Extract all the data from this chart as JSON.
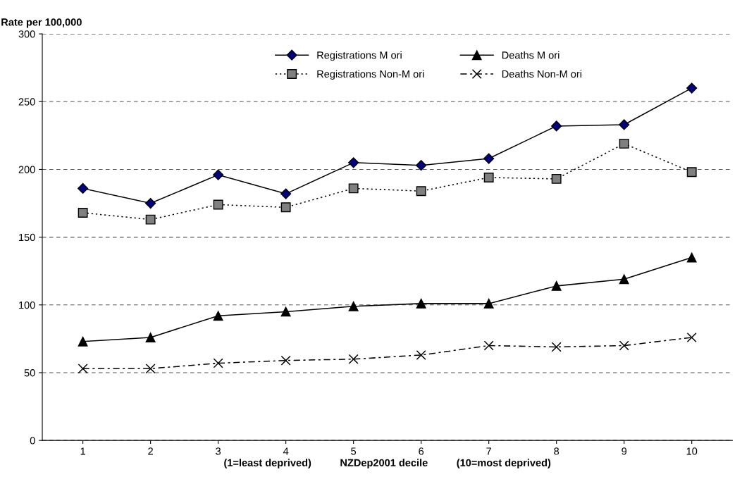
{
  "chart_data": {
    "type": "line",
    "ylabel": "Rate per 100,000",
    "xlabel": "(1=least deprived)          NZDep2001 decile          (10=most deprived)",
    "categories": [
      "1",
      "2",
      "3",
      "4",
      "5",
      "6",
      "7",
      "8",
      "9",
      "10"
    ],
    "series": [
      {
        "name": "Registrations M ori",
        "color": "#000080",
        "marker": "diamond",
        "line_style": "solid",
        "values": [
          186,
          175,
          196,
          182,
          205,
          203,
          208,
          232,
          233,
          260
        ]
      },
      {
        "name": "Registrations Non-M ori",
        "color": "#808080",
        "marker": "square",
        "line_style": "dotted",
        "values": [
          168,
          163,
          174,
          172,
          186,
          184,
          194,
          193,
          219,
          198
        ]
      },
      {
        "name": "Deaths M ori",
        "color": "#000000",
        "marker": "triangle",
        "line_style": "solid",
        "values": [
          73,
          76,
          92,
          95,
          99,
          101,
          101,
          114,
          119,
          135
        ]
      },
      {
        "name": "Deaths Non-M ori",
        "color": "#000000",
        "marker": "cross",
        "line_style": "dashed",
        "values": [
          53,
          53,
          57,
          59,
          60,
          63,
          70,
          69,
          70,
          76
        ]
      }
    ],
    "ylim": [
      0,
      300
    ],
    "yticks": [
      0,
      50,
      100,
      150,
      200,
      250,
      300
    ],
    "grid": "y",
    "legend": "top"
  }
}
